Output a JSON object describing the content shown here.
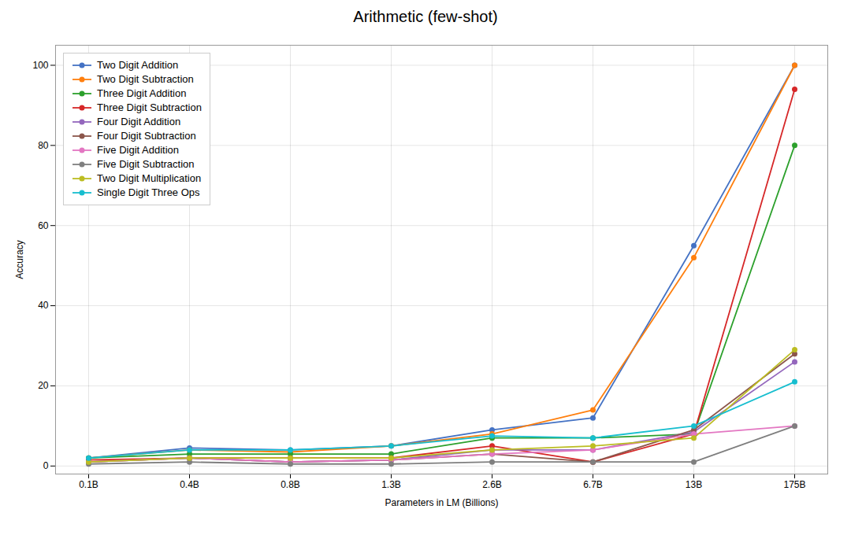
{
  "chart_data": {
    "type": "line",
    "title": "Arithmetic (few-shot)",
    "xlabel": "Parameters in LM (Billions)",
    "ylabel": "Accuracy",
    "categories": [
      "0.1B",
      "0.4B",
      "0.8B",
      "1.3B",
      "2.6B",
      "6.7B",
      "13B",
      "175B"
    ],
    "ylim": [
      -2,
      105
    ],
    "yticks": [
      0,
      20,
      40,
      60,
      80,
      100
    ],
    "grid": true,
    "legend": "upper left",
    "marker": "circle",
    "series": [
      {
        "name": "Two Digit Addition",
        "color": "#4472C4",
        "values": [
          2.0,
          4.5,
          4.0,
          5.0,
          9.0,
          12.0,
          55.0,
          100.0
        ]
      },
      {
        "name": "Two Digit Subtraction",
        "color": "#FF7F0E",
        "values": [
          2.0,
          4.0,
          3.5,
          5.0,
          8.0,
          14.0,
          52.0,
          100.0
        ]
      },
      {
        "name": "Three Digit Addition",
        "color": "#2CA02C",
        "values": [
          2.0,
          3.0,
          3.0,
          3.0,
          7.0,
          7.0,
          8.0,
          80.0
        ]
      },
      {
        "name": "Three Digit Subtraction",
        "color": "#D62728",
        "values": [
          1.5,
          2.0,
          2.0,
          2.0,
          5.0,
          1.0,
          8.0,
          94.0
        ]
      },
      {
        "name": "Four Digit Addition",
        "color": "#9467BD",
        "values": [
          1.0,
          2.0,
          1.0,
          1.5,
          4.0,
          4.0,
          8.5,
          26.0
        ]
      },
      {
        "name": "Four Digit Subtraction",
        "color": "#8C564B",
        "values": [
          1.0,
          2.0,
          1.0,
          1.5,
          3.0,
          1.0,
          9.0,
          28.0
        ]
      },
      {
        "name": "Five Digit Addition",
        "color": "#E377C2",
        "values": [
          1.0,
          2.0,
          1.0,
          1.5,
          3.0,
          4.0,
          8.0,
          10.0
        ]
      },
      {
        "name": "Five Digit Subtraction",
        "color": "#7F7F7F",
        "values": [
          0.5,
          1.0,
          0.5,
          0.5,
          1.0,
          1.0,
          1.0,
          10.0
        ]
      },
      {
        "name": "Two Digit Multiplication",
        "color": "#BCBD22",
        "values": [
          1.0,
          2.0,
          2.0,
          2.0,
          4.0,
          5.0,
          7.0,
          29.0
        ]
      },
      {
        "name": "Single Digit Three Ops",
        "color": "#17BECF",
        "values": [
          2.0,
          4.0,
          4.0,
          5.0,
          7.5,
          7.0,
          10.0,
          21.0
        ]
      }
    ]
  }
}
